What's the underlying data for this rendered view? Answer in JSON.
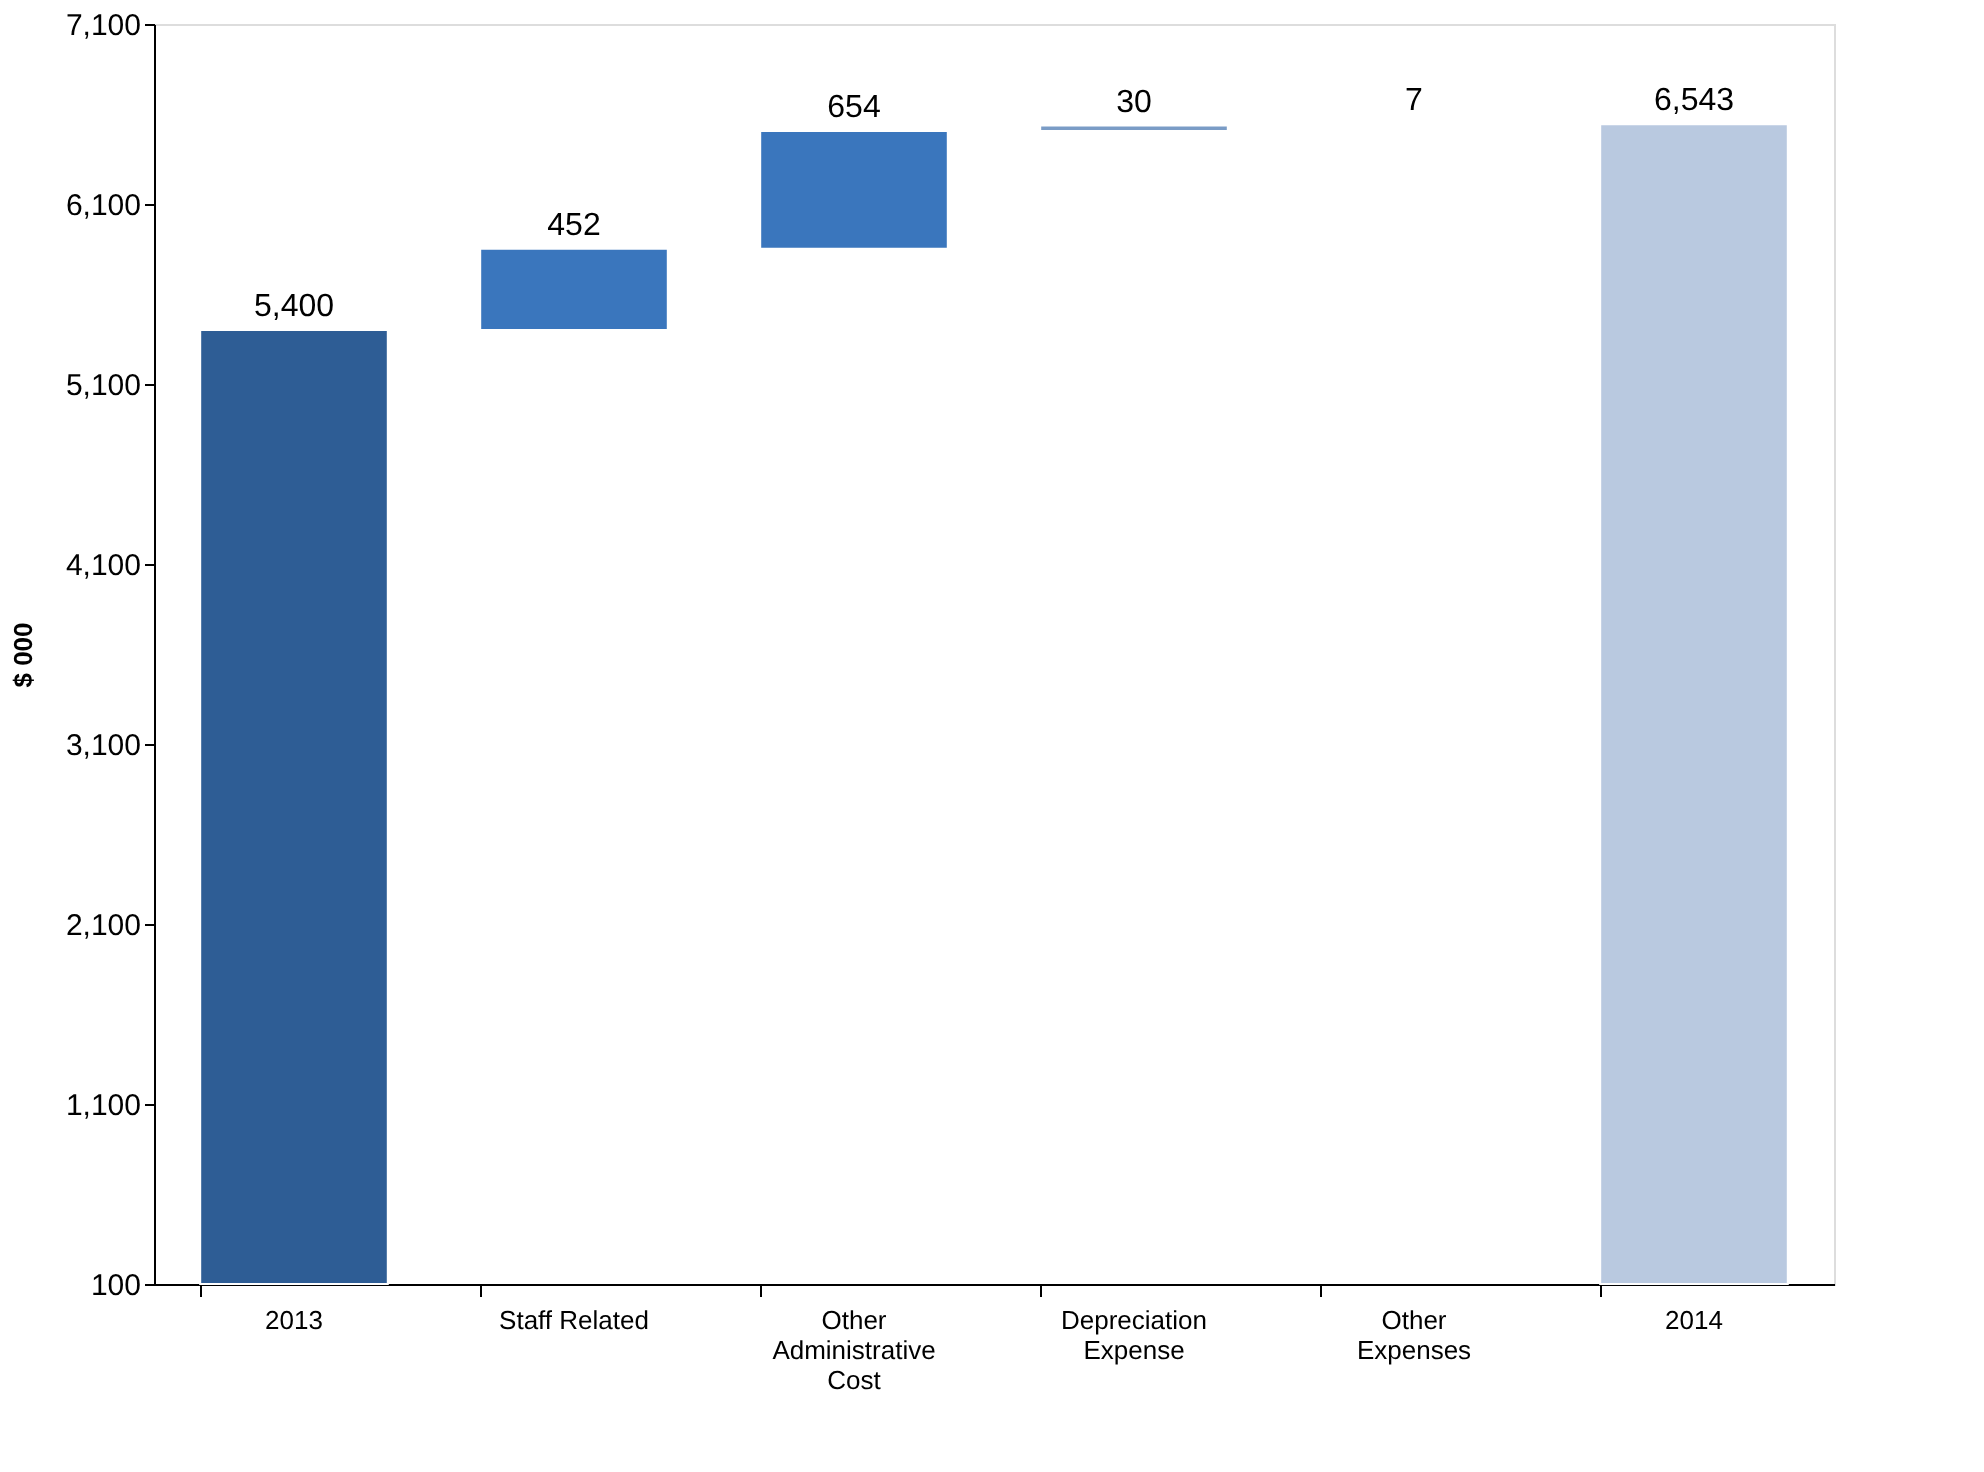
{
  "chart_data": {
    "type": "bar",
    "ylabel": "$ 000",
    "categories": [
      "2013",
      "Staff Related",
      "Other Administrative Cost",
      "Depreciation Expense",
      "Other Expenses",
      "2014"
    ],
    "values": [
      5400,
      452,
      654,
      30,
      7,
      6543
    ],
    "base": [
      null,
      5400,
      5852,
      6506,
      6536,
      null
    ],
    "colors": [
      "#2e5d95",
      "#3a76bd",
      "#3a76bd",
      "#7a9cc6",
      "#a9b9cf",
      "#b9c9e0"
    ],
    "value_labels": [
      "5,400",
      "452",
      "654",
      "30",
      "7",
      "6,543"
    ],
    "ylim": [
      100,
      7100
    ],
    "yticks": [
      100,
      {
        "value": 1100,
        "label": "1,100"
      },
      {
        "value": 2100,
        "label": "2,100"
      },
      {
        "value": 3100,
        "label": "3,100"
      },
      {
        "value": 4100,
        "label": "4,100"
      },
      {
        "value": 5100,
        "label": "5,100"
      },
      {
        "value": 6100,
        "label": "6,100"
      },
      {
        "value": 7100,
        "label": "7,100"
      }
    ],
    "grid": false
  }
}
